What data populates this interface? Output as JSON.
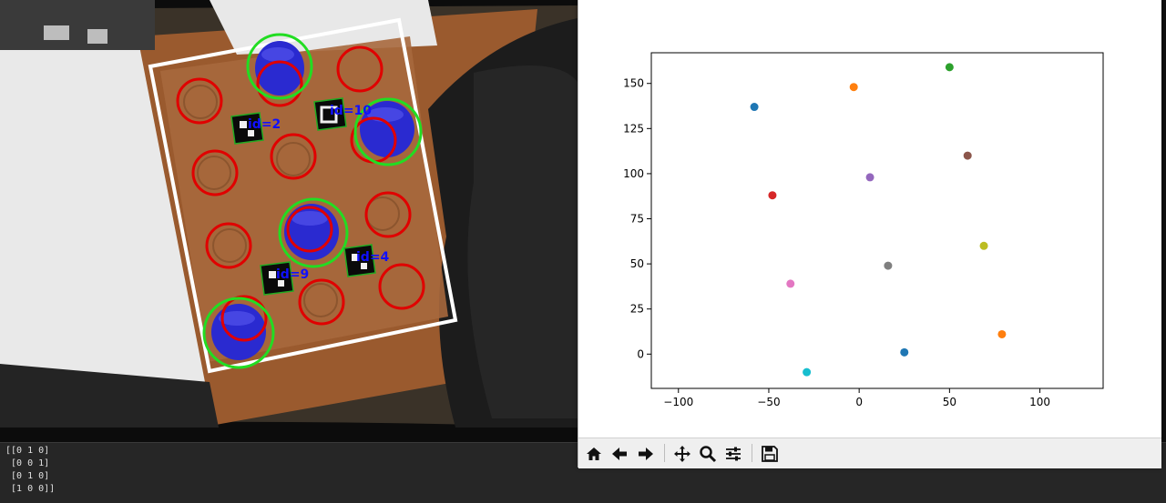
{
  "camera": {
    "markers": [
      {
        "id": "2",
        "label": "id=2"
      },
      {
        "id": "10",
        "label": "id=10"
      },
      {
        "id": "9",
        "label": "id=9"
      },
      {
        "id": "4",
        "label": "id=4"
      }
    ],
    "colors": {
      "empty_slot": "#e00000",
      "filled_slot": "#22dd22",
      "tray_outline": "#ffffff",
      "marker_label": "#1010ff",
      "cup": "#2a2ad0"
    }
  },
  "terminal": {
    "lines": [
      "[[0 1 0]",
      " [0 0 1]",
      " [0 1 0]",
      " [1 0 0]]"
    ]
  },
  "toolbar": {
    "buttons": [
      {
        "name": "home",
        "icon": "home-icon"
      },
      {
        "name": "back",
        "icon": "arrow-left-icon"
      },
      {
        "name": "forward",
        "icon": "arrow-right-icon"
      },
      {
        "name": "pan",
        "icon": "move-icon"
      },
      {
        "name": "zoom",
        "icon": "magnifier-icon"
      },
      {
        "name": "subplots",
        "icon": "sliders-icon"
      },
      {
        "name": "save",
        "icon": "floppy-icon"
      }
    ]
  },
  "chart_data": {
    "type": "scatter",
    "title": "",
    "xlabel": "",
    "ylabel": "",
    "xlim": [
      -115,
      135
    ],
    "ylim": [
      -19,
      167
    ],
    "xticks": [
      -100,
      -50,
      0,
      50,
      100
    ],
    "yticks": [
      0,
      25,
      50,
      75,
      100,
      125,
      150
    ],
    "grid": false,
    "points": [
      {
        "x": -58,
        "y": 137,
        "color": "#1f77b4"
      },
      {
        "x": -3,
        "y": 148,
        "color": "#ff7f0e"
      },
      {
        "x": 50,
        "y": 159,
        "color": "#2ca02c"
      },
      {
        "x": -48,
        "y": 88,
        "color": "#d62728"
      },
      {
        "x": 6,
        "y": 98,
        "color": "#9467bd"
      },
      {
        "x": 60,
        "y": 110,
        "color": "#8c564b"
      },
      {
        "x": -38,
        "y": 39,
        "color": "#e377c2"
      },
      {
        "x": 16,
        "y": 49,
        "color": "#7f7f7f"
      },
      {
        "x": 69,
        "y": 60,
        "color": "#bcbd22"
      },
      {
        "x": -29,
        "y": -10,
        "color": "#17becf"
      },
      {
        "x": 25,
        "y": 1,
        "color": "#1f77b4"
      },
      {
        "x": 79,
        "y": 11,
        "color": "#ff7f0e"
      }
    ]
  }
}
